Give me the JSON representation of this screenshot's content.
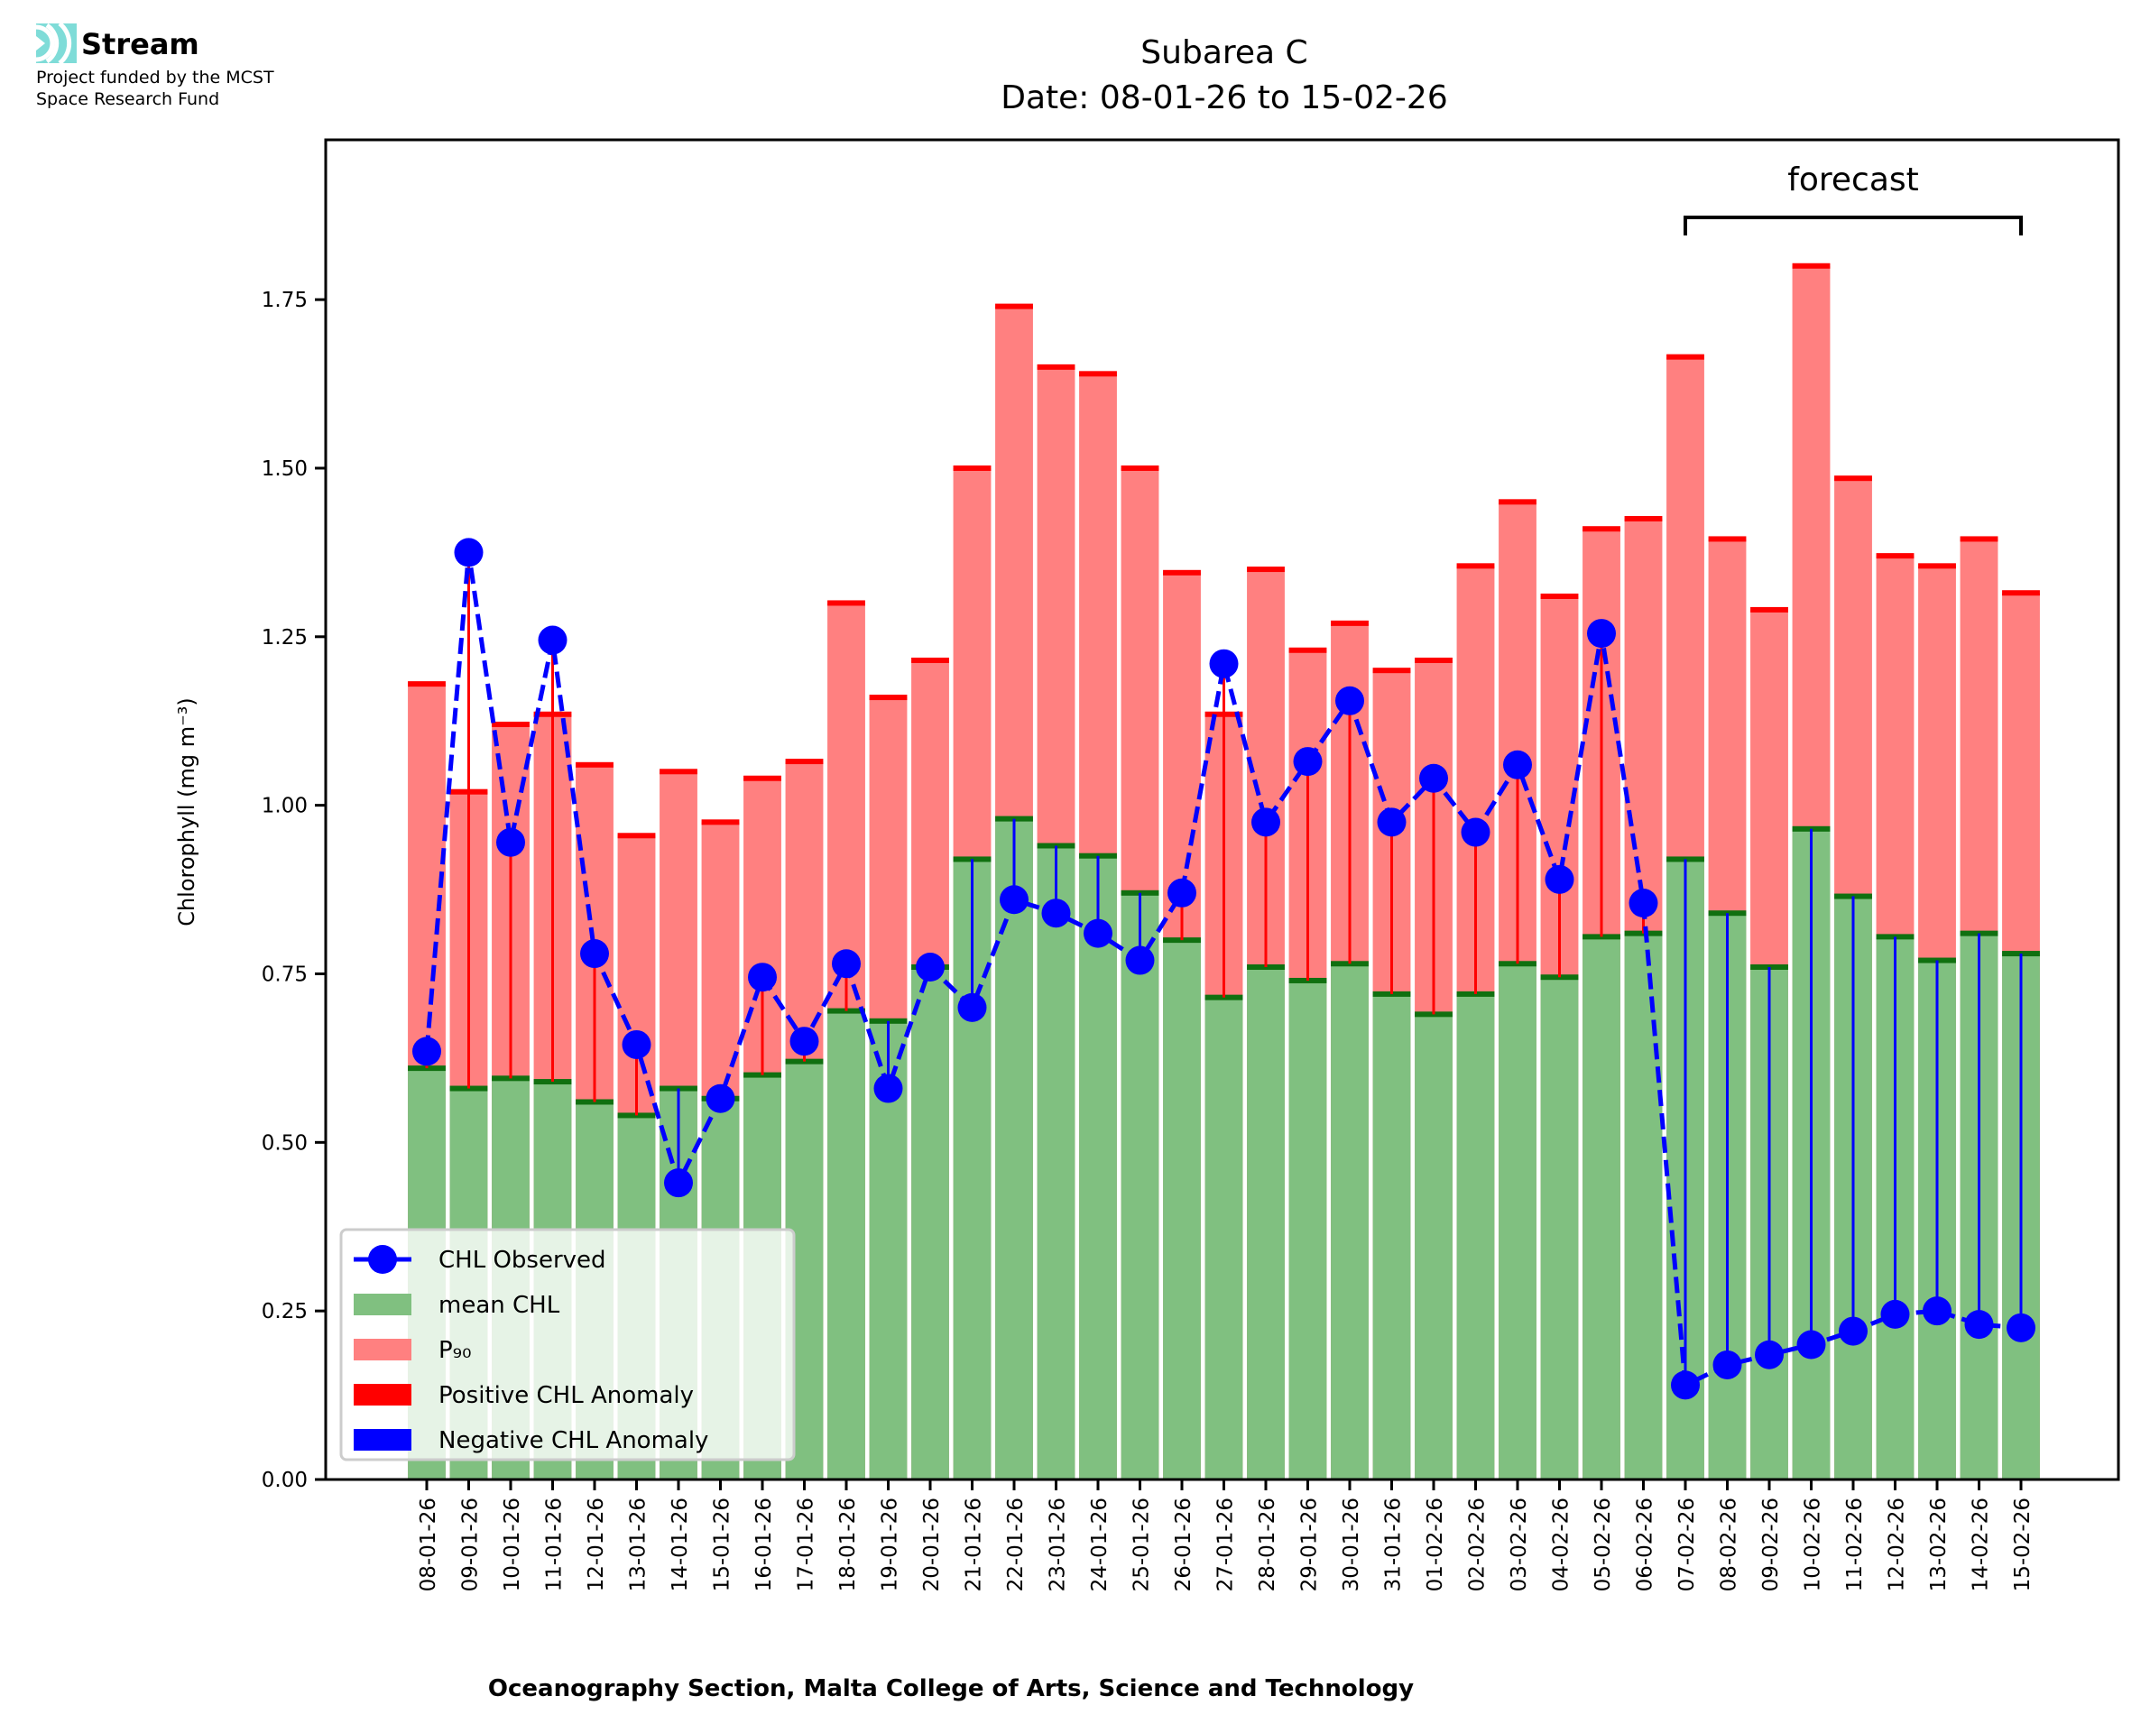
{
  "logo": {
    "name": "Stream",
    "line1": "Project funded by the MCST",
    "line2": "Space Research Fund",
    "color": "#7fdcd8"
  },
  "chart_data": {
    "type": "bar",
    "title": "Subarea C",
    "subtitle": "Date: 08-01-26 to 15-02-26",
    "xlabel": "Oceanography Section, Malta College of Arts, Science and Technology",
    "ylabel": "Chlorophyll (mg m⁻³)",
    "ylim": [
      0,
      1.987
    ],
    "yticks": [
      "0.00",
      "0.25",
      "0.50",
      "0.75",
      "1.00",
      "1.25",
      "1.50",
      "1.75"
    ],
    "grid": false,
    "legend_placement": "lower-left",
    "annotation": {
      "text": "forecast",
      "from": "07-02-26",
      "to": "15-02-26"
    },
    "categories": [
      "08-01-26",
      "09-01-26",
      "10-01-26",
      "11-01-26",
      "12-01-26",
      "13-01-26",
      "14-01-26",
      "15-01-26",
      "16-01-26",
      "17-01-26",
      "18-01-26",
      "19-01-26",
      "20-01-26",
      "21-01-26",
      "22-01-26",
      "23-01-26",
      "24-01-26",
      "25-01-26",
      "26-01-26",
      "27-01-26",
      "28-01-26",
      "29-01-26",
      "30-01-26",
      "31-01-26",
      "01-02-26",
      "02-02-26",
      "03-02-26",
      "04-02-26",
      "05-02-26",
      "06-02-26",
      "07-02-26",
      "08-02-26",
      "09-02-26",
      "10-02-26",
      "11-02-26",
      "12-02-26",
      "13-02-26",
      "14-02-26",
      "15-02-26"
    ],
    "series": [
      {
        "name": "CHL Observed",
        "color": "#0000ff",
        "values": [
          0.635,
          1.375,
          0.945,
          1.245,
          0.78,
          0.645,
          0.44,
          0.565,
          0.745,
          0.65,
          0.765,
          0.58,
          0.76,
          0.7,
          0.86,
          0.84,
          0.81,
          0.77,
          0.87,
          1.21,
          0.975,
          1.065,
          1.155,
          0.975,
          1.04,
          0.96,
          1.06,
          0.89,
          1.255,
          0.855,
          0.14,
          0.17,
          0.185,
          0.2,
          0.22,
          0.245,
          0.25,
          0.23,
          0.225
        ]
      },
      {
        "name": "mean CHL",
        "color": "#80c080",
        "values": [
          0.61,
          0.58,
          0.595,
          0.59,
          0.56,
          0.54,
          0.58,
          0.565,
          0.6,
          0.62,
          0.695,
          0.68,
          0.76,
          0.92,
          0.98,
          0.94,
          0.925,
          0.87,
          0.8,
          0.715,
          0.76,
          0.74,
          0.765,
          0.72,
          0.69,
          0.72,
          0.765,
          0.745,
          0.805,
          0.81,
          0.92,
          0.84,
          0.76,
          0.965,
          0.865,
          0.805,
          0.77,
          0.81,
          0.78
        ]
      },
      {
        "name": "P₉₀",
        "color": "#ff8080",
        "values": [
          1.18,
          1.02,
          1.12,
          1.135,
          1.06,
          0.955,
          1.05,
          0.975,
          1.04,
          1.065,
          1.3,
          1.16,
          1.215,
          1.5,
          1.74,
          1.65,
          1.64,
          1.5,
          1.345,
          1.135,
          1.35,
          1.23,
          1.27,
          1.2,
          1.215,
          1.355,
          1.45,
          1.31,
          1.41,
          1.425,
          1.665,
          1.395,
          1.29,
          1.8,
          1.485,
          1.37,
          1.355,
          1.395,
          1.315
        ]
      }
    ],
    "legend": [
      "CHL Observed",
      "mean CHL",
      "P₉₀",
      "Positive CHL Anomaly",
      "Negative CHL Anomaly"
    ],
    "anomaly_colors": {
      "positive": "#ff0000",
      "negative": "#0000ff"
    }
  }
}
